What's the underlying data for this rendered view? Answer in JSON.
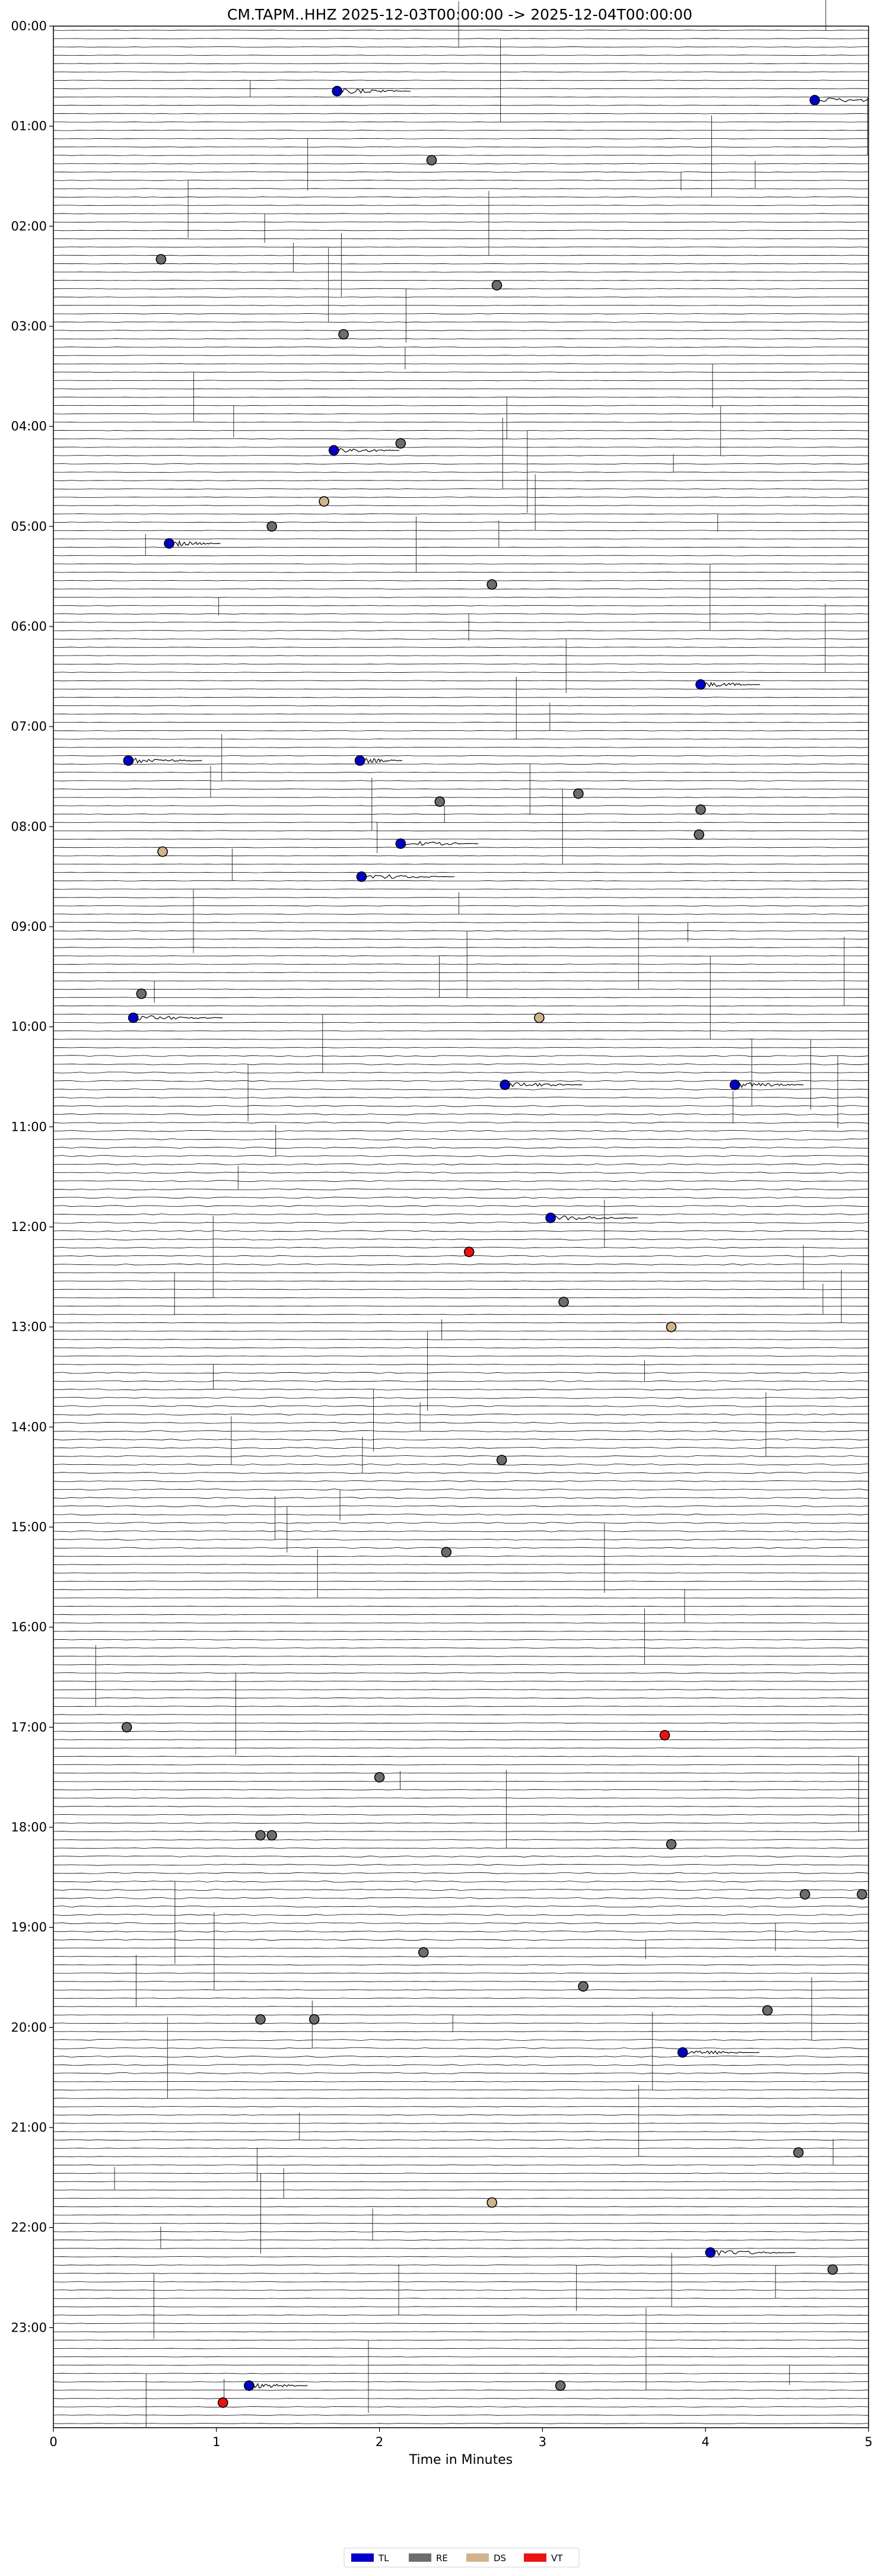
{
  "chart_data": {
    "type": "scatter",
    "title": "CM.TAPM..HHZ  2025-12-03T00:00:00 -> 2025-12-04T00:00:00",
    "xlabel": "Time in Minutes",
    "ylabel": "",
    "xlim": [
      0,
      5
    ],
    "x_ticks": [
      "0",
      "1",
      "2",
      "3",
      "4",
      "5"
    ],
    "y_unit": "hour of day",
    "ylim": [
      0,
      24
    ],
    "y_ticks": [
      "00:00",
      "01:00",
      "02:00",
      "03:00",
      "04:00",
      "05:00",
      "06:00",
      "07:00",
      "08:00",
      "09:00",
      "10:00",
      "11:00",
      "12:00",
      "13:00",
      "14:00",
      "15:00",
      "16:00",
      "17:00",
      "18:00",
      "19:00",
      "20:00",
      "21:00",
      "22:00",
      "23:00"
    ],
    "traces_per_hour": 12,
    "trace_color": "#000000",
    "grid": false,
    "legend_position": "bottom-center",
    "series": [
      {
        "name": "TL",
        "color": "#0000cc",
        "points": [
          {
            "x": 1.74,
            "y": 0.65
          },
          {
            "x": 4.67,
            "y": 0.74
          },
          {
            "x": 0.71,
            "y": 5.17
          },
          {
            "x": 1.72,
            "y": 4.24
          },
          {
            "x": 3.97,
            "y": 6.58
          },
          {
            "x": 0.46,
            "y": 7.34
          },
          {
            "x": 1.88,
            "y": 7.34
          },
          {
            "x": 2.13,
            "y": 8.17
          },
          {
            "x": 1.89,
            "y": 8.5
          },
          {
            "x": 0.49,
            "y": 9.91
          },
          {
            "x": 2.77,
            "y": 10.58
          },
          {
            "x": 4.18,
            "y": 10.58
          },
          {
            "x": 3.05,
            "y": 11.91
          },
          {
            "x": 3.86,
            "y": 20.25
          },
          {
            "x": 4.03,
            "y": 22.25
          },
          {
            "x": 1.2,
            "y": 23.58
          }
        ]
      },
      {
        "name": "RE",
        "color": "#6d6d6d",
        "points": [
          {
            "x": 2.32,
            "y": 1.34
          },
          {
            "x": 0.66,
            "y": 2.33
          },
          {
            "x": 2.72,
            "y": 2.59
          },
          {
            "x": 1.78,
            "y": 3.08
          },
          {
            "x": 2.13,
            "y": 4.17
          },
          {
            "x": 1.34,
            "y": 5.0
          },
          {
            "x": 2.69,
            "y": 5.58
          },
          {
            "x": 2.37,
            "y": 7.75
          },
          {
            "x": 3.22,
            "y": 7.67
          },
          {
            "x": 3.97,
            "y": 7.83
          },
          {
            "x": 3.96,
            "y": 8.08
          },
          {
            "x": 0.54,
            "y": 9.67
          },
          {
            "x": 3.13,
            "y": 12.75
          },
          {
            "x": 2.75,
            "y": 14.33
          },
          {
            "x": 2.41,
            "y": 15.25
          },
          {
            "x": 0.45,
            "y": 17.0
          },
          {
            "x": 2.0,
            "y": 17.5
          },
          {
            "x": 1.27,
            "y": 18.08
          },
          {
            "x": 1.34,
            "y": 18.08
          },
          {
            "x": 3.79,
            "y": 18.17
          },
          {
            "x": 4.61,
            "y": 18.67
          },
          {
            "x": 4.96,
            "y": 18.67
          },
          {
            "x": 2.27,
            "y": 19.25
          },
          {
            "x": 3.25,
            "y": 19.59
          },
          {
            "x": 1.27,
            "y": 19.92
          },
          {
            "x": 1.6,
            "y": 19.92
          },
          {
            "x": 4.38,
            "y": 19.83
          },
          {
            "x": 4.57,
            "y": 21.25
          },
          {
            "x": 4.78,
            "y": 22.42
          },
          {
            "x": 3.11,
            "y": 23.58
          }
        ]
      },
      {
        "name": "DS",
        "color": "#d2b48c",
        "points": [
          {
            "x": 1.66,
            "y": 4.75
          },
          {
            "x": 0.67,
            "y": 8.25
          },
          {
            "x": 2.98,
            "y": 9.91
          },
          {
            "x": 3.79,
            "y": 13.0
          },
          {
            "x": 2.69,
            "y": 21.75
          }
        ]
      },
      {
        "name": "VT",
        "color": "#ee1111",
        "points": [
          {
            "x": 2.55,
            "y": 12.25
          },
          {
            "x": 3.75,
            "y": 17.08
          },
          {
            "x": 1.04,
            "y": 23.75
          }
        ]
      }
    ]
  }
}
